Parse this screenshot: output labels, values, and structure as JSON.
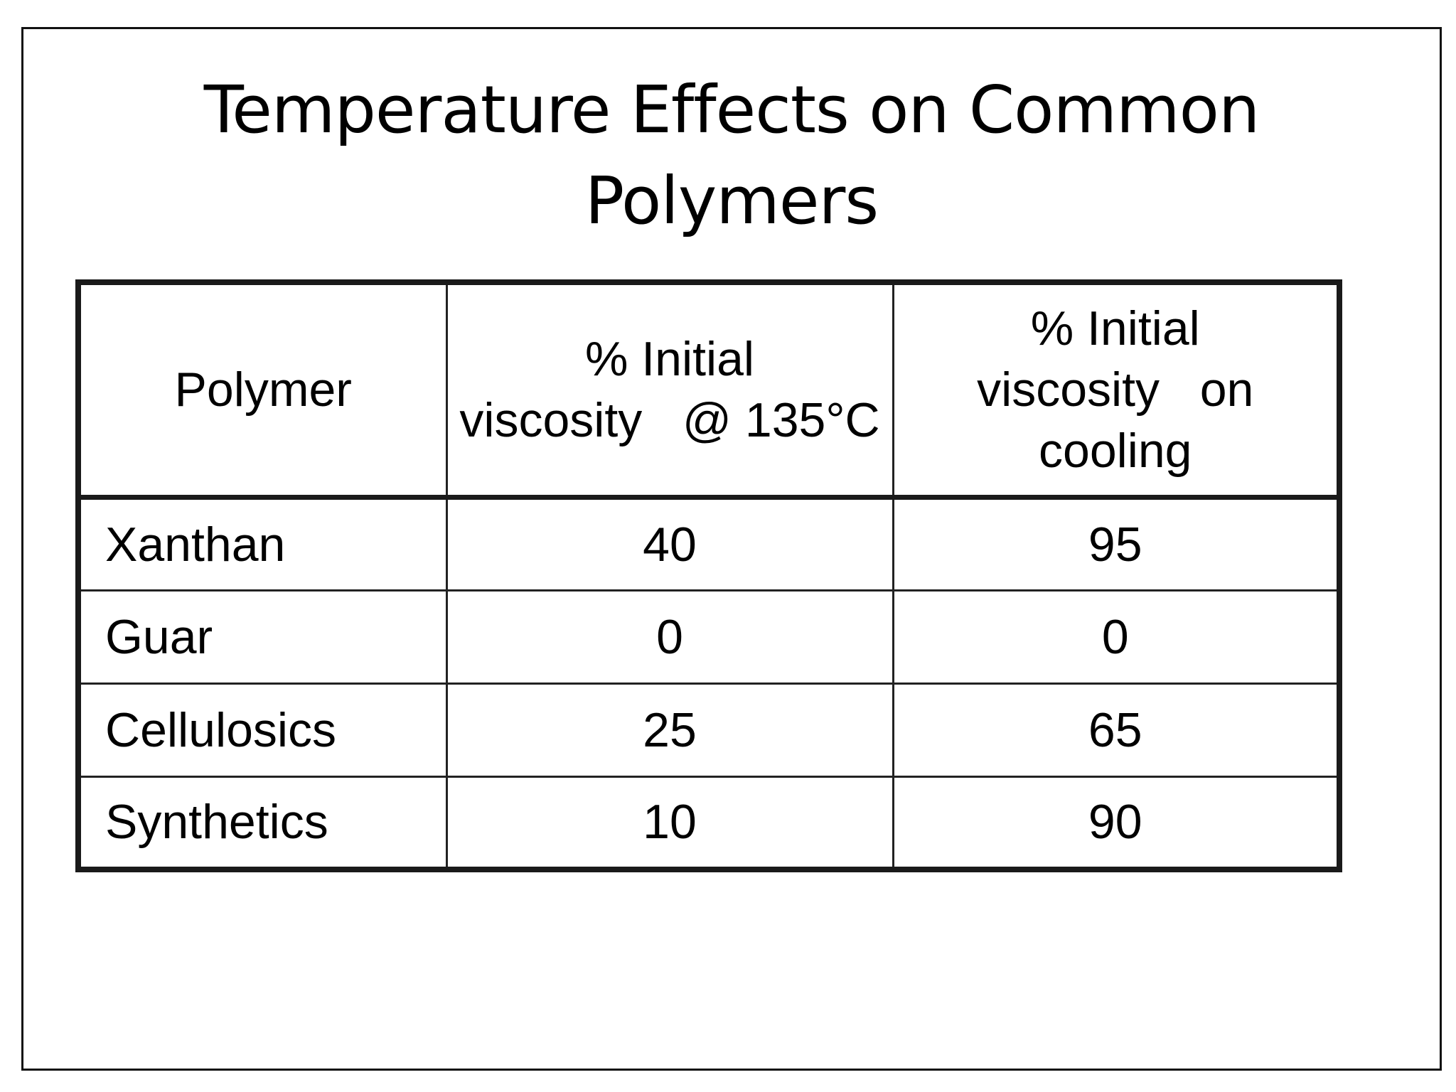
{
  "slide": {
    "title_line1": "Temperature Effects on Common",
    "title_line2": "Polymers"
  },
  "table": {
    "headers": {
      "polymer": "Polymer",
      "hot": {
        "line1": "% Initial",
        "line2": "viscosity   @ 135°C"
      },
      "cool": {
        "line1": "% Initial",
        "line2": "viscosity   on",
        "line3": "cooling"
      }
    },
    "rows": [
      {
        "polymer": "Xanthan",
        "hot": "40",
        "cool": "95"
      },
      {
        "polymer": "Guar",
        "hot": "0",
        "cool": "0"
      },
      {
        "polymer": "Cellulosics",
        "hot": "25",
        "cool": "65"
      },
      {
        "polymer": "Synthetics",
        "hot": "10",
        "cool": "90"
      }
    ]
  }
}
